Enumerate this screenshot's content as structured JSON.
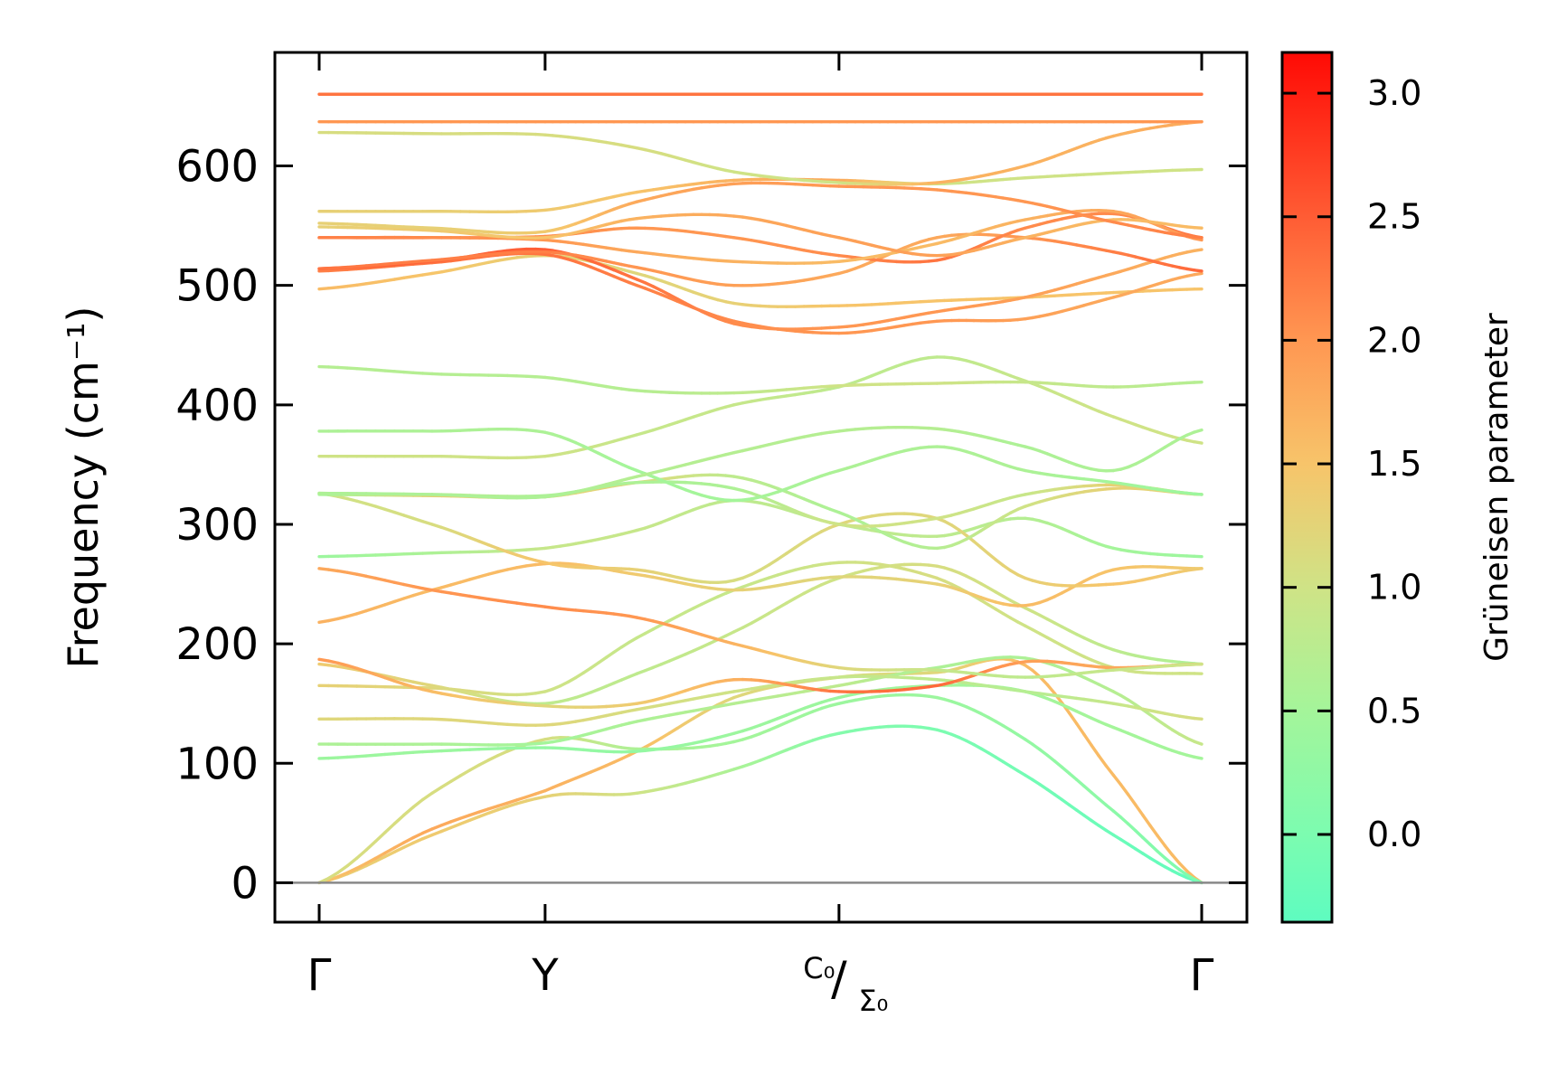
{
  "chart_data": {
    "type": "line",
    "title": "",
    "xlabel": "",
    "ylabel": "Frequency (cm⁻¹)",
    "ylim": [
      -33,
      695
    ],
    "yticks": [
      0,
      100,
      200,
      300,
      400,
      500,
      600
    ],
    "xticks": [
      {
        "pos": 0.0,
        "label": "Γ"
      },
      {
        "pos": 0.256,
        "label": "Y"
      },
      {
        "pos": 0.589,
        "label": "C₀/Σ₀",
        "top": "C₀",
        "bottom": "Σ₀"
      },
      {
        "pos": 1.0,
        "label": "Γ"
      }
    ],
    "zero_line": true,
    "x": [
      0,
      0.128,
      0.256,
      0.36,
      0.47,
      0.589,
      0.7,
      0.8,
      0.9,
      1.0
    ],
    "series": [
      {
        "name": "band-1",
        "values": [
          0,
          40,
          72,
          75,
          95,
          125,
          128,
          90,
          40,
          0
        ],
        "gamma": [
          1.3,
          1.4,
          1.3,
          1.0,
          0.6,
          0.1,
          0.0,
          -0.1,
          -0.2,
          -0.3
        ]
      },
      {
        "name": "band-2",
        "values": [
          0,
          45,
          77,
          110,
          155,
          172,
          176,
          182,
          90,
          0
        ],
        "gamma": [
          1.5,
          1.8,
          1.7,
          1.6,
          1.2,
          1.1,
          1.2,
          1.6,
          1.6,
          1.6
        ]
      },
      {
        "name": "band-3",
        "values": [
          0,
          75,
          120,
          112,
          118,
          150,
          155,
          120,
          60,
          0
        ],
        "gamma": [
          1.1,
          1.1,
          1.1,
          0.6,
          0.5,
          0.4,
          0.4,
          0.3,
          0.2,
          0.0
        ]
      },
      {
        "name": "band-4",
        "values": [
          104,
          110,
          113,
          110,
          125,
          155,
          165,
          160,
          130,
          104
        ],
        "gamma": [
          0.4,
          0.4,
          0.3,
          0.3,
          0.4,
          0.4,
          0.5,
          0.5,
          0.5,
          0.5
        ]
      },
      {
        "name": "band-5",
        "values": [
          116,
          116,
          117,
          135,
          150,
          165,
          180,
          188,
          160,
          116
        ],
        "gamma": [
          0.6,
          0.6,
          0.5,
          0.6,
          0.7,
          0.8,
          0.6,
          0.6,
          0.7,
          0.9
        ]
      },
      {
        "name": "band-6",
        "values": [
          137,
          137,
          132,
          145,
          160,
          172,
          170,
          160,
          150,
          137
        ],
        "gamma": [
          1.2,
          1.2,
          1.2,
          1.1,
          1.0,
          0.9,
          0.8,
          0.7,
          0.9,
          1.1
        ]
      },
      {
        "name": "band-7",
        "values": [
          165,
          163,
          160,
          205,
          245,
          268,
          255,
          215,
          180,
          175
        ],
        "gamma": [
          1.3,
          1.2,
          1.0,
          0.9,
          0.9,
          1.0,
          1.1,
          1.0,
          1.0,
          1.0
        ]
      },
      {
        "name": "band-8",
        "values": [
          183,
          165,
          150,
          175,
          210,
          255,
          265,
          230,
          195,
          183
        ],
        "gamma": [
          1.4,
          1.2,
          0.8,
          0.8,
          0.9,
          1.0,
          1.1,
          1.0,
          0.8,
          0.6
        ]
      },
      {
        "name": "band-9",
        "values": [
          187,
          160,
          148,
          150,
          170,
          160,
          165,
          185,
          180,
          183
        ],
        "gamma": [
          2.0,
          1.6,
          1.2,
          1.4,
          1.7,
          2.3,
          2.4,
          1.9,
          1.8,
          1.9
        ]
      },
      {
        "name": "band-10",
        "values": [
          218,
          245,
          267,
          258,
          245,
          256,
          250,
          232,
          262,
          263
        ],
        "gamma": [
          1.7,
          1.6,
          1.6,
          1.4,
          1.3,
          1.2,
          1.3,
          1.6,
          1.5,
          1.4
        ]
      },
      {
        "name": "band-11",
        "values": [
          263,
          245,
          231,
          222,
          200,
          180,
          178,
          172,
          178,
          183
        ],
        "gamma": [
          1.8,
          2.0,
          2.1,
          2.0,
          1.7,
          1.2,
          0.9,
          0.8,
          0.9,
          1.0
        ]
      },
      {
        "name": "band-12",
        "values": [
          273,
          276,
          280,
          295,
          320,
          300,
          290,
          305,
          280,
          273
        ],
        "gamma": [
          0.4,
          0.6,
          0.9,
          0.9,
          0.8,
          0.8,
          0.8,
          0.7,
          0.5,
          0.4
        ]
      },
      {
        "name": "band-13",
        "values": [
          326,
          300,
          268,
          262,
          253,
          300,
          305,
          255,
          250,
          263
        ],
        "gamma": [
          1.0,
          1.1,
          1.5,
          1.3,
          1.1,
          1.2,
          1.2,
          1.3,
          1.5,
          1.4
        ]
      },
      {
        "name": "band-14",
        "values": [
          325,
          324,
          323,
          335,
          340,
          310,
          280,
          315,
          330,
          325
        ],
        "gamma": [
          0.5,
          1.3,
          1.3,
          1.2,
          0.8,
          0.6,
          0.7,
          1.0,
          1.3,
          1.2
        ]
      },
      {
        "name": "band-15",
        "values": [
          326,
          325,
          324,
          335,
          330,
          300,
          305,
          325,
          333,
          325
        ],
        "gamma": [
          0.9,
          0.8,
          0.6,
          0.6,
          0.6,
          1.0,
          1.0,
          0.9,
          1.3,
          1.2
        ]
      },
      {
        "name": "band-16",
        "values": [
          357,
          357,
          357,
          375,
          400,
          415,
          440,
          420,
          390,
          368
        ],
        "gamma": [
          1.0,
          1.0,
          1.0,
          0.9,
          0.9,
          0.8,
          0.8,
          0.9,
          1.0,
          1.0
        ]
      },
      {
        "name": "band-17",
        "values": [
          378,
          378,
          377,
          345,
          320,
          345,
          365,
          345,
          335,
          325
        ],
        "gamma": [
          0.6,
          0.6,
          0.6,
          0.5,
          0.5,
          0.6,
          0.6,
          0.6,
          0.5,
          0.4
        ]
      },
      {
        "name": "band-18",
        "values": [
          326,
          325,
          323,
          340,
          360,
          378,
          380,
          365,
          345,
          379
        ],
        "gamma": [
          0.6,
          0.6,
          0.6,
          0.7,
          0.7,
          0.7,
          0.7,
          0.6,
          0.6,
          0.6
        ]
      },
      {
        "name": "band-19",
        "values": [
          432,
          426,
          423,
          412,
          410,
          416,
          418,
          419,
          415,
          419
        ],
        "gamma": [
          0.7,
          0.7,
          0.7,
          0.7,
          0.8,
          1.0,
          1.0,
          0.9,
          0.8,
          0.7
        ]
      },
      {
        "name": "band-20",
        "values": [
          497,
          510,
          525,
          510,
          485,
          483,
          487,
          490,
          494,
          497
        ],
        "gamma": [
          1.6,
          1.5,
          1.3,
          1.2,
          1.3,
          1.5,
          1.5,
          1.5,
          1.5,
          1.5
        ]
      },
      {
        "name": "band-21",
        "values": [
          512,
          519,
          526,
          500,
          470,
          460,
          470,
          472,
          490,
          510
        ],
        "gamma": [
          2.2,
          2.3,
          2.3,
          2.2,
          2.1,
          2.0,
          2.0,
          1.9,
          1.8,
          1.8
        ]
      },
      {
        "name": "band-22",
        "values": [
          514,
          520,
          530,
          505,
          468,
          465,
          478,
          490,
          510,
          530
        ],
        "gamma": [
          2.6,
          2.4,
          2.5,
          2.3,
          2.1,
          2.0,
          2.0,
          1.9,
          1.8,
          1.7
        ]
      },
      {
        "name": "band-23",
        "values": [
          514,
          521,
          528,
          515,
          500,
          510,
          540,
          540,
          528,
          512
        ],
        "gamma": [
          2.3,
          2.2,
          2.2,
          2.0,
          1.9,
          1.8,
          1.8,
          2.0,
          2.2,
          2.4
        ]
      },
      {
        "name": "band-24",
        "values": [
          540,
          540,
          541,
          548,
          540,
          525,
          521,
          548,
          560,
          540
        ],
        "gamma": [
          2.3,
          2.2,
          2.1,
          2.0,
          2.0,
          2.1,
          2.3,
          2.1,
          2.1,
          2.3
        ]
      },
      {
        "name": "band-25",
        "values": [
          540,
          540,
          538,
          528,
          520,
          520,
          535,
          555,
          562,
          538
        ],
        "gamma": [
          2.2,
          2.1,
          2.0,
          1.8,
          1.7,
          1.6,
          1.6,
          1.7,
          1.8,
          2.0
        ]
      },
      {
        "name": "band-26",
        "values": [
          549,
          546,
          540,
          556,
          558,
          540,
          525,
          540,
          555,
          548
        ],
        "gamma": [
          1.3,
          1.4,
          1.5,
          1.7,
          1.8,
          1.9,
          1.9,
          1.7,
          1.6,
          1.6
        ]
      },
      {
        "name": "band-27",
        "values": [
          552,
          548,
          545,
          570,
          585,
          583,
          580,
          570,
          553,
          540
        ],
        "gamma": [
          1.3,
          1.3,
          1.4,
          1.8,
          1.9,
          2.0,
          2.0,
          2.0,
          2.1,
          2.2
        ]
      },
      {
        "name": "band-28",
        "values": [
          562,
          562,
          563,
          578,
          588,
          588,
          585,
          590,
          594,
          597
        ],
        "gamma": [
          1.3,
          1.3,
          1.4,
          1.5,
          1.7,
          1.8,
          1.0,
          1.0,
          1.0,
          1.0
        ]
      },
      {
        "name": "band-29",
        "values": [
          628,
          627,
          626,
          615,
          595,
          586,
          586,
          600,
          625,
          637
        ],
        "gamma": [
          1.1,
          1.1,
          1.1,
          1.1,
          1.0,
          1.0,
          1.7,
          1.7,
          1.7,
          1.8
        ]
      },
      {
        "name": "band-30",
        "values": [
          637,
          637,
          637,
          637,
          637,
          637,
          637,
          637,
          637,
          637
        ],
        "gamma": [
          2.0,
          2.0,
          2.0,
          2.0,
          2.0,
          2.0,
          2.0,
          2.0,
          2.0,
          2.0
        ]
      },
      {
        "name": "band-31",
        "values": [
          660,
          660,
          660,
          660,
          660,
          660,
          660,
          660,
          660,
          660
        ],
        "gamma": [
          2.3,
          2.3,
          2.3,
          2.3,
          2.3,
          2.3,
          2.3,
          2.3,
          2.3,
          2.3
        ]
      }
    ],
    "colorbar": {
      "label": "Grüneisen parameter",
      "range": [
        -0.355,
        3.165
      ],
      "ticks": [
        0.0,
        0.5,
        1.0,
        1.5,
        2.0,
        2.5,
        3.0
      ],
      "tick_labels": [
        "0.0",
        "0.5",
        "1.0",
        "1.5",
        "2.0",
        "2.5",
        "3.0"
      ],
      "stops": [
        {
          "v": -0.355,
          "c": "#5efcc0"
        },
        {
          "v": 0.0,
          "c": "#7cfcb0"
        },
        {
          "v": 0.5,
          "c": "#a4f59a"
        },
        {
          "v": 1.0,
          "c": "#cfe386"
        },
        {
          "v": 1.5,
          "c": "#f7c46a"
        },
        {
          "v": 2.0,
          "c": "#ff9752"
        },
        {
          "v": 2.5,
          "c": "#ff5c34"
        },
        {
          "v": 3.165,
          "c": "#ff0a05"
        }
      ]
    },
    "zero_line_color": "#888888"
  }
}
